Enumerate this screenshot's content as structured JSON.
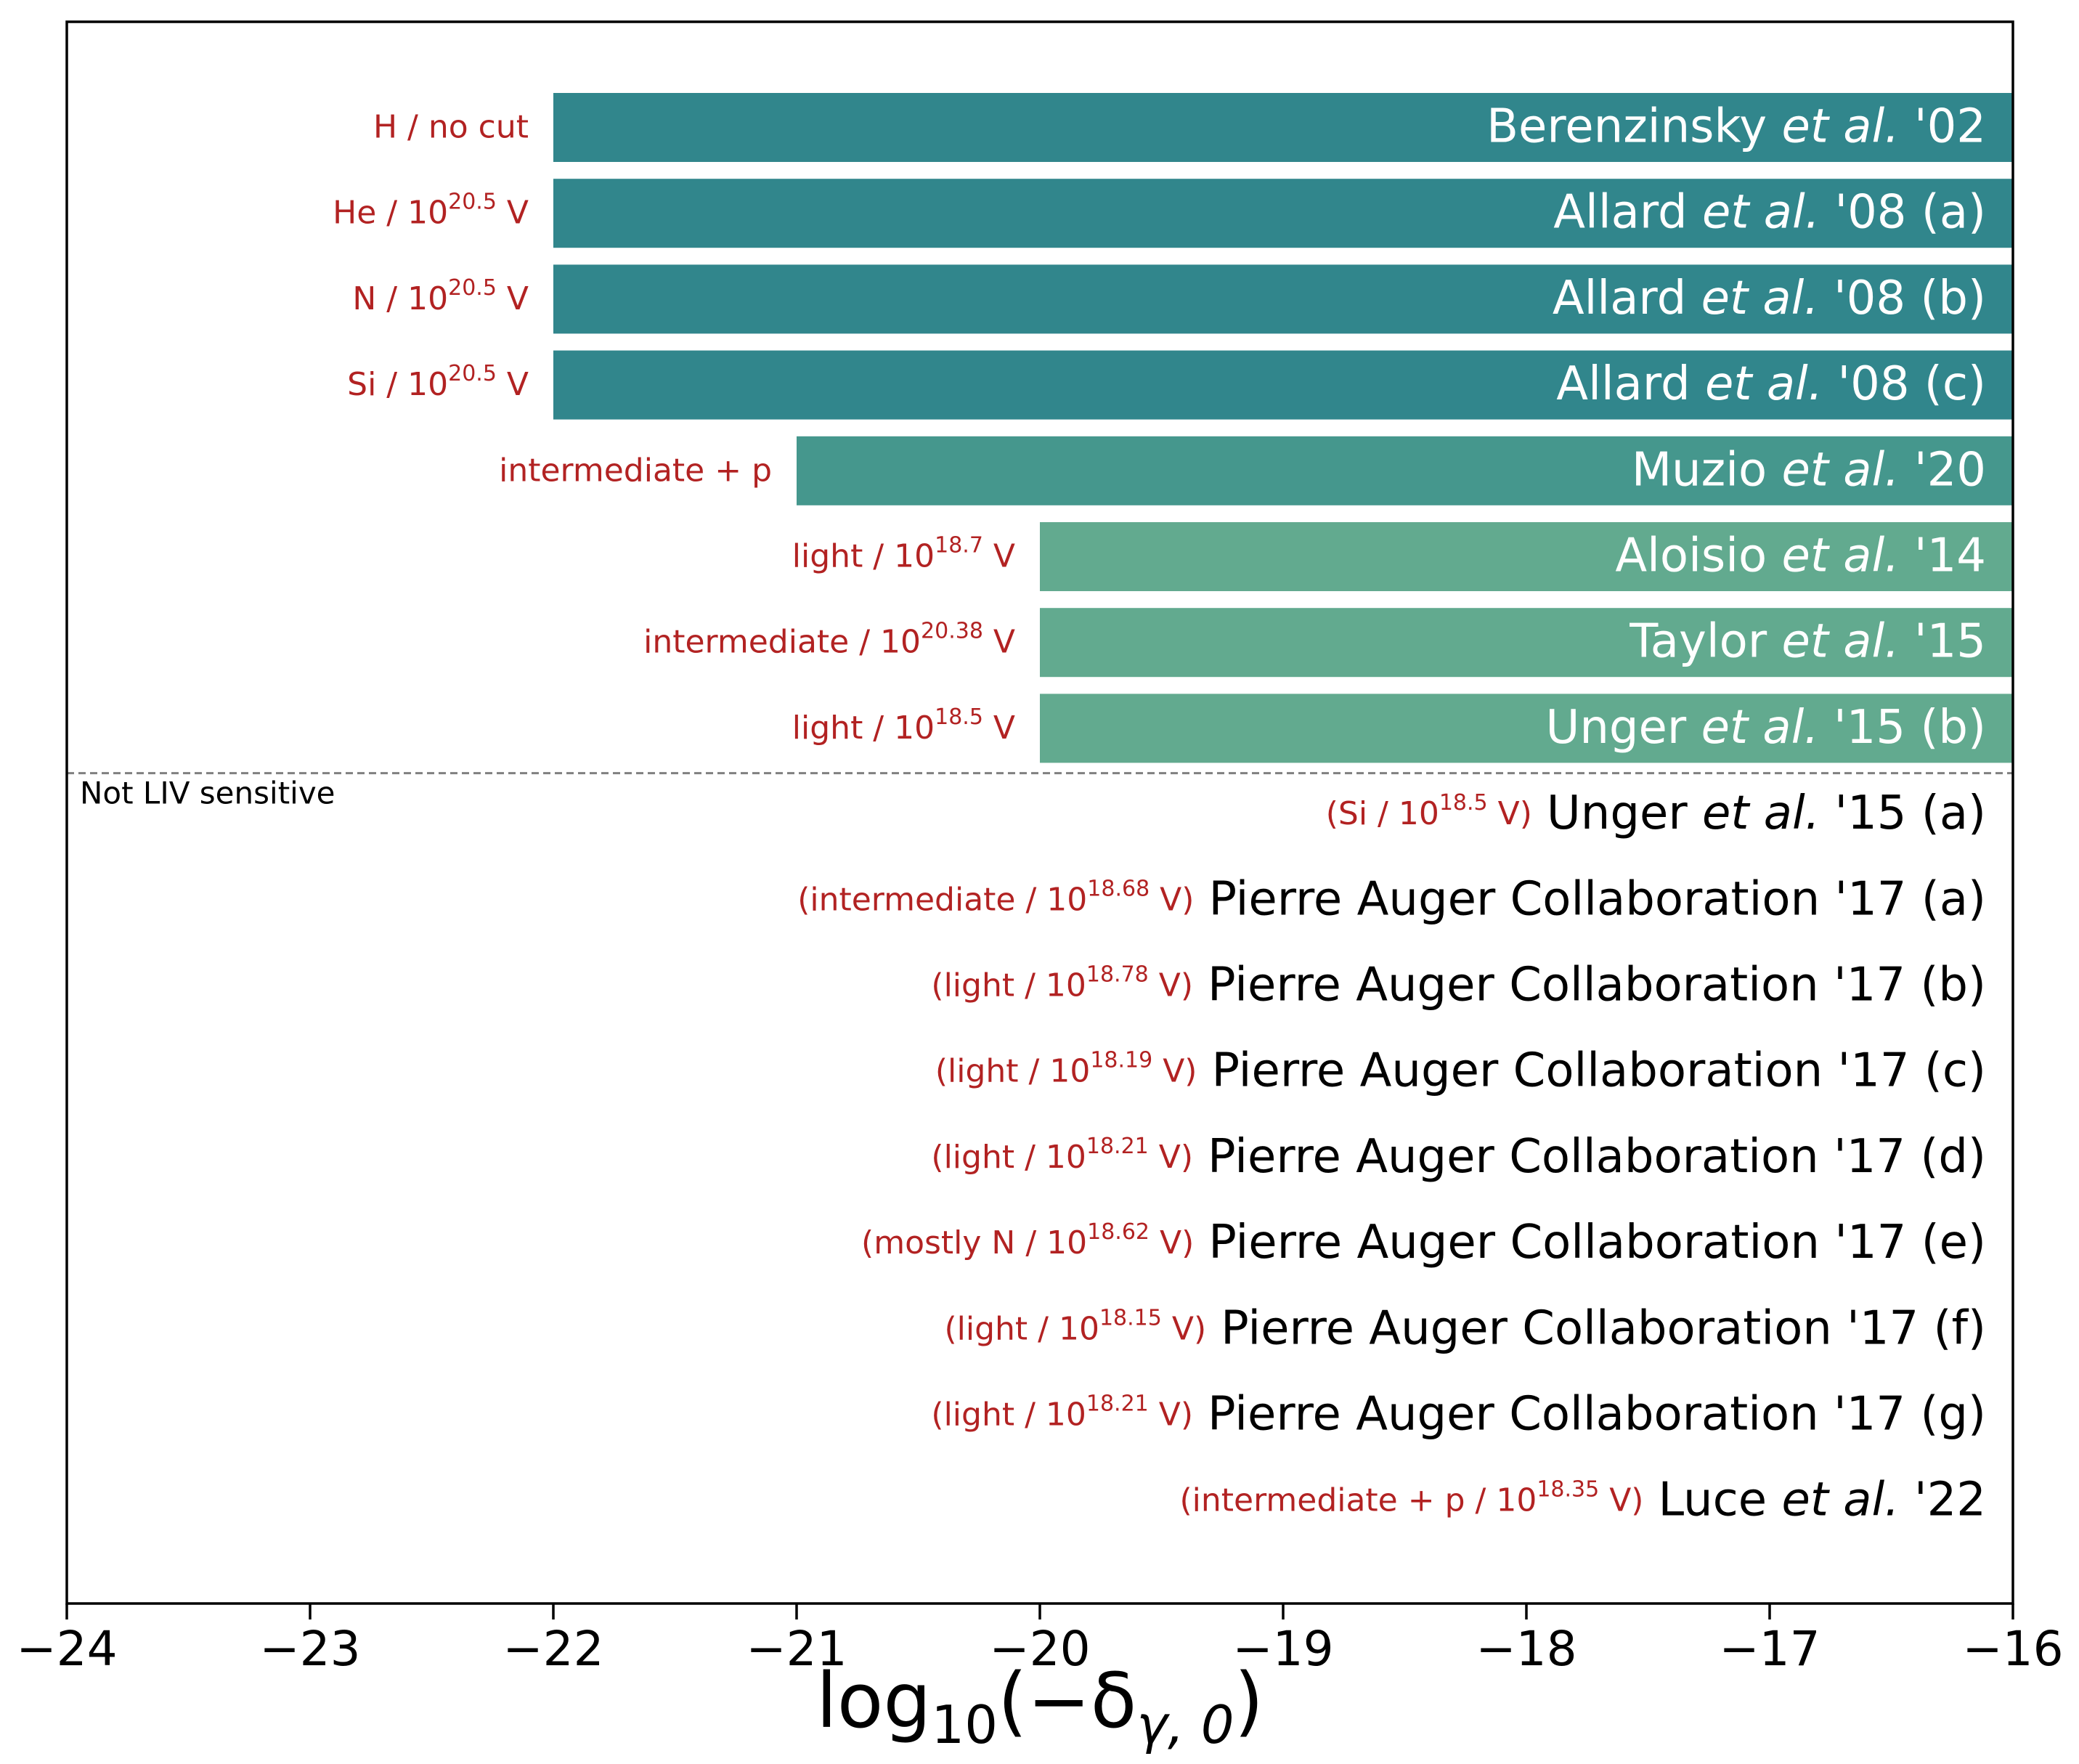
{
  "chart_data": {
    "type": "bar",
    "orientation": "horizontal",
    "xlabel": "log10(−δγ,0)",
    "xlabel_parts": {
      "base": "log",
      "sub": "10",
      "open": "(−δ",
      "sub2": "γ, 0",
      "close": ")"
    },
    "xlim": [
      -24,
      -16
    ],
    "xticks": [
      -24,
      -23,
      -22,
      -21,
      -20,
      -19,
      -18,
      -17,
      -16
    ],
    "xtick_labels": [
      "−24",
      "−23",
      "−22",
      "−21",
      "−20",
      "−19",
      "−18",
      "−17",
      "−16"
    ],
    "separator_label": "Not LIV sensitive",
    "colors": {
      "dark": "#31868c",
      "mid": "#45978d",
      "light": "#62aa8f",
      "annotation": "#b22222",
      "axis": "#000000",
      "separator": "#808080"
    },
    "rows": [
      {
        "name": "Berenzinsky",
        "etal": true,
        "suffix": "'02",
        "xmin": -22,
        "color": "dark",
        "note": "H / no cut"
      },
      {
        "name": "Allard",
        "etal": true,
        "suffix": "'08 (a)",
        "xmin": -22,
        "color": "dark",
        "note": "He / 10",
        "sup": "20.5",
        "note_end": " V"
      },
      {
        "name": "Allard",
        "etal": true,
        "suffix": "'08 (b)",
        "xmin": -22,
        "color": "dark",
        "note": "N / 10",
        "sup": "20.5",
        "note_end": " V"
      },
      {
        "name": "Allard",
        "etal": true,
        "suffix": "'08 (c)",
        "xmin": -22,
        "color": "dark",
        "note": "Si / 10",
        "sup": "20.5",
        "note_end": " V"
      },
      {
        "name": "Muzio",
        "etal": true,
        "suffix": "'20",
        "xmin": -21,
        "color": "mid",
        "note": "intermediate + p"
      },
      {
        "name": "Aloisio",
        "etal": true,
        "suffix": "'14",
        "xmin": -20,
        "color": "light",
        "note": "light / 10",
        "sup": "18.7",
        "note_end": " V"
      },
      {
        "name": "Taylor",
        "etal": true,
        "suffix": "'15",
        "xmin": -20,
        "color": "light",
        "note": "intermediate / 10",
        "sup": "20.38",
        "note_end": " V"
      },
      {
        "name": "Unger",
        "etal": true,
        "suffix": "'15 (b)",
        "xmin": -20,
        "color": "light",
        "note": "light / 10",
        "sup": "18.5",
        "note_end": " V"
      },
      {
        "name": "Unger",
        "etal": true,
        "suffix": "'15 (a)",
        "xmin": null,
        "color": null,
        "note": "(Si / 10",
        "sup": "18.5",
        "note_end": " V)"
      },
      {
        "name": "Pierre Auger Collaboration",
        "etal": false,
        "suffix": "'17 (a)",
        "xmin": null,
        "color": null,
        "note": "(intermediate / 10",
        "sup": "18.68",
        "note_end": " V)"
      },
      {
        "name": "Pierre Auger Collaboration",
        "etal": false,
        "suffix": "'17 (b)",
        "xmin": null,
        "color": null,
        "note": "(light / 10",
        "sup": "18.78",
        "note_end": " V)"
      },
      {
        "name": "Pierre Auger Collaboration",
        "etal": false,
        "suffix": "'17 (c)",
        "xmin": null,
        "color": null,
        "note": "(light / 10",
        "sup": "18.19",
        "note_end": " V)"
      },
      {
        "name": "Pierre Auger Collaboration",
        "etal": false,
        "suffix": "'17 (d)",
        "xmin": null,
        "color": null,
        "note": "(light / 10",
        "sup": "18.21",
        "note_end": " V)"
      },
      {
        "name": "Pierre Auger Collaboration",
        "etal": false,
        "suffix": "'17 (e)",
        "xmin": null,
        "color": null,
        "note": "(mostly N / 10",
        "sup": "18.62",
        "note_end": " V)"
      },
      {
        "name": "Pierre Auger Collaboration",
        "etal": false,
        "suffix": "'17 (f)",
        "xmin": null,
        "color": null,
        "note": "(light / 10",
        "sup": "18.15",
        "note_end": " V)"
      },
      {
        "name": "Pierre Auger Collaboration",
        "etal": false,
        "suffix": "'17 (g)",
        "xmin": null,
        "color": null,
        "note": "(light / 10",
        "sup": "18.21",
        "note_end": " V)"
      },
      {
        "name": "Luce",
        "etal": true,
        "suffix": "'22",
        "xmin": null,
        "color": null,
        "note": "(intermediate + p / 10",
        "sup": "18.35",
        "note_end": " V)"
      }
    ],
    "etal_text": "et al.",
    "grid": false
  }
}
